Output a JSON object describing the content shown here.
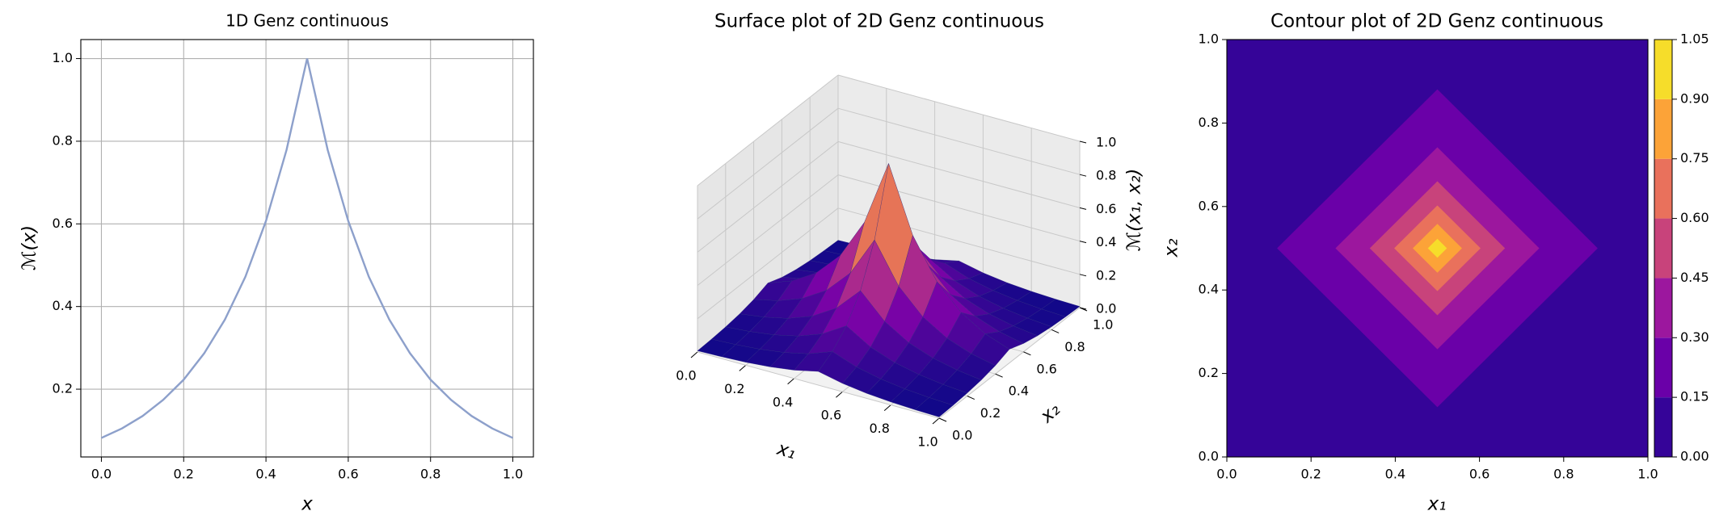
{
  "chart_data": [
    {
      "type": "line",
      "title": "1D Genz continuous",
      "xlabel": "x",
      "ylabel": "ℳ(x)",
      "x": [
        0,
        0.05,
        0.1,
        0.15,
        0.2,
        0.25,
        0.3,
        0.35,
        0.4,
        0.45,
        0.5,
        0.55,
        0.6,
        0.65,
        0.7,
        0.75,
        0.8,
        0.85,
        0.9,
        0.95,
        1
      ],
      "values": [
        0.082,
        0.105,
        0.135,
        0.174,
        0.223,
        0.287,
        0.368,
        0.472,
        0.607,
        0.779,
        1,
        0.779,
        0.607,
        0.472,
        0.368,
        0.287,
        0.223,
        0.174,
        0.135,
        0.105,
        0.082
      ],
      "color": "#8da0cb",
      "xlim": [
        -0.05,
        1.05
      ],
      "ylim": [
        0.036,
        1.046
      ],
      "xticks": [
        {
          "value": 0,
          "label": "0.0"
        },
        0.2,
        0.4,
        0.6,
        0.8,
        {
          "value": 1,
          "label": "1.0"
        }
      ],
      "yticks": [
        0.2,
        0.4,
        0.6,
        0.8,
        {
          "value": 1,
          "label": "1.0"
        }
      ],
      "grid": true
    },
    {
      "type": "surface",
      "title": "Surface plot of 2D Genz continuous",
      "xlabel": "x₁",
      "ylabel": "x₂",
      "zlabel": "ℳ(x₁, x₂)",
      "x": [
        0,
        0.1,
        0.2,
        0.3,
        0.4,
        0.5,
        0.6,
        0.7,
        0.8,
        0.9,
        1
      ],
      "y": [
        0,
        0.1,
        0.2,
        0.3,
        0.4,
        0.5,
        0.6,
        0.7,
        0.8,
        0.9,
        1
      ],
      "z": [
        [
          0.007,
          0.011,
          0.018,
          0.03,
          0.05,
          0.082,
          0.05,
          0.03,
          0.018,
          0.011,
          0.007
        ],
        [
          0.011,
          0.018,
          0.03,
          0.05,
          0.082,
          0.135,
          0.082,
          0.05,
          0.03,
          0.018,
          0.011
        ],
        [
          0.018,
          0.03,
          0.05,
          0.082,
          0.135,
          0.223,
          0.135,
          0.082,
          0.05,
          0.03,
          0.018
        ],
        [
          0.03,
          0.05,
          0.082,
          0.135,
          0.223,
          0.368,
          0.223,
          0.135,
          0.082,
          0.05,
          0.03
        ],
        [
          0.05,
          0.082,
          0.135,
          0.223,
          0.368,
          0.607,
          0.368,
          0.223,
          0.135,
          0.082,
          0.05
        ],
        [
          0.082,
          0.135,
          0.223,
          0.368,
          0.607,
          1,
          0.607,
          0.368,
          0.223,
          0.135,
          0.082
        ],
        [
          0.05,
          0.082,
          0.135,
          0.223,
          0.368,
          0.607,
          0.368,
          0.223,
          0.135,
          0.082,
          0.05
        ],
        [
          0.03,
          0.05,
          0.082,
          0.135,
          0.223,
          0.368,
          0.223,
          0.135,
          0.082,
          0.05,
          0.03
        ],
        [
          0.018,
          0.03,
          0.05,
          0.082,
          0.135,
          0.223,
          0.135,
          0.082,
          0.05,
          0.03,
          0.018
        ],
        [
          0.011,
          0.018,
          0.03,
          0.05,
          0.082,
          0.135,
          0.082,
          0.05,
          0.03,
          0.018,
          0.011
        ],
        [
          0.007,
          0.011,
          0.018,
          0.03,
          0.05,
          0.082,
          0.05,
          0.03,
          0.018,
          0.011,
          0.007
        ]
      ],
      "xlim": [
        0,
        1
      ],
      "ylim": [
        0,
        1
      ],
      "zlim": [
        0,
        1
      ],
      "xticks": [
        {
          "value": 0,
          "label": "0.0"
        },
        0.2,
        0.4,
        0.6,
        0.8,
        {
          "value": 1,
          "label": "1.0"
        }
      ],
      "yticks": [
        {
          "value": 0,
          "label": "0.0"
        },
        0.2,
        0.4,
        0.6,
        0.8,
        {
          "value": 1,
          "label": "1.0"
        }
      ],
      "zticks": [
        {
          "value": 0,
          "label": "0.0"
        },
        0.2,
        0.4,
        0.6,
        0.8,
        {
          "value": 1,
          "label": "1.0"
        }
      ],
      "colormap": "plasma"
    },
    {
      "type": "contour",
      "title": "Contour plot of 2D Genz continuous",
      "xlabel": "x₁",
      "ylabel": "x₂",
      "x": [
        0,
        0.05,
        0.1,
        0.15,
        0.2,
        0.25,
        0.3,
        0.35,
        0.4,
        0.45,
        0.5,
        0.55,
        0.6,
        0.65,
        0.7,
        0.75,
        0.8,
        0.85,
        0.9,
        0.95,
        1
      ],
      "y": [
        0,
        0.05,
        0.1,
        0.15,
        0.2,
        0.25,
        0.3,
        0.35,
        0.4,
        0.45,
        0.5,
        0.55,
        0.6,
        0.65,
        0.7,
        0.75,
        0.8,
        0.85,
        0.9,
        0.95,
        1
      ],
      "z": [
        [
          0.007,
          0.009,
          0.011,
          0.014,
          0.018,
          0.024,
          0.03,
          0.039,
          0.05,
          0.064,
          0.082,
          0.064,
          0.05,
          0.039,
          0.03,
          0.024,
          0.018,
          0.014,
          0.011,
          0.009,
          0.007
        ],
        [
          0.009,
          0.011,
          0.014,
          0.018,
          0.024,
          0.03,
          0.039,
          0.05,
          0.064,
          0.082,
          0.105,
          0.082,
          0.064,
          0.05,
          0.039,
          0.03,
          0.024,
          0.018,
          0.014,
          0.011,
          0.009
        ],
        [
          0.011,
          0.014,
          0.018,
          0.024,
          0.03,
          0.039,
          0.05,
          0.064,
          0.082,
          0.105,
          0.135,
          0.105,
          0.082,
          0.064,
          0.05,
          0.039,
          0.03,
          0.024,
          0.018,
          0.014,
          0.011
        ],
        [
          0.014,
          0.018,
          0.024,
          0.03,
          0.039,
          0.05,
          0.064,
          0.082,
          0.105,
          0.135,
          0.174,
          0.135,
          0.105,
          0.082,
          0.064,
          0.05,
          0.039,
          0.03,
          0.024,
          0.018,
          0.014
        ],
        [
          0.018,
          0.024,
          0.03,
          0.039,
          0.05,
          0.064,
          0.082,
          0.105,
          0.135,
          0.174,
          0.223,
          0.174,
          0.135,
          0.105,
          0.082,
          0.064,
          0.05,
          0.039,
          0.03,
          0.024,
          0.018
        ],
        [
          0.024,
          0.03,
          0.039,
          0.05,
          0.064,
          0.082,
          0.105,
          0.135,
          0.174,
          0.223,
          0.287,
          0.223,
          0.174,
          0.135,
          0.105,
          0.082,
          0.064,
          0.05,
          0.039,
          0.03,
          0.024
        ],
        [
          0.03,
          0.039,
          0.05,
          0.064,
          0.082,
          0.105,
          0.135,
          0.174,
          0.223,
          0.287,
          0.368,
          0.287,
          0.223,
          0.174,
          0.135,
          0.105,
          0.082,
          0.064,
          0.05,
          0.039,
          0.03
        ],
        [
          0.039,
          0.05,
          0.064,
          0.082,
          0.105,
          0.135,
          0.174,
          0.223,
          0.287,
          0.368,
          0.472,
          0.368,
          0.287,
          0.223,
          0.174,
          0.135,
          0.105,
          0.082,
          0.064,
          0.05,
          0.039
        ],
        [
          0.05,
          0.064,
          0.082,
          0.105,
          0.135,
          0.174,
          0.223,
          0.287,
          0.368,
          0.472,
          0.607,
          0.472,
          0.368,
          0.287,
          0.223,
          0.174,
          0.135,
          0.105,
          0.082,
          0.064,
          0.05
        ],
        [
          0.064,
          0.082,
          0.105,
          0.135,
          0.174,
          0.223,
          0.287,
          0.368,
          0.472,
          0.607,
          0.779,
          0.607,
          0.472,
          0.368,
          0.287,
          0.223,
          0.174,
          0.135,
          0.105,
          0.082,
          0.064
        ],
        [
          0.082,
          0.105,
          0.135,
          0.174,
          0.223,
          0.287,
          0.368,
          0.472,
          0.607,
          0.779,
          1,
          0.779,
          0.607,
          0.472,
          0.368,
          0.287,
          0.223,
          0.174,
          0.135,
          0.105,
          0.082
        ],
        [
          0.064,
          0.082,
          0.105,
          0.135,
          0.174,
          0.223,
          0.287,
          0.368,
          0.472,
          0.607,
          0.779,
          0.607,
          0.472,
          0.368,
          0.287,
          0.223,
          0.174,
          0.135,
          0.105,
          0.082,
          0.064
        ],
        [
          0.05,
          0.064,
          0.082,
          0.105,
          0.135,
          0.174,
          0.223,
          0.287,
          0.368,
          0.472,
          0.607,
          0.472,
          0.368,
          0.287,
          0.223,
          0.174,
          0.135,
          0.105,
          0.082,
          0.064,
          0.05
        ],
        [
          0.039,
          0.05,
          0.064,
          0.082,
          0.105,
          0.135,
          0.174,
          0.223,
          0.287,
          0.368,
          0.472,
          0.368,
          0.287,
          0.223,
          0.174,
          0.135,
          0.105,
          0.082,
          0.064,
          0.05,
          0.039
        ],
        [
          0.03,
          0.039,
          0.05,
          0.064,
          0.082,
          0.105,
          0.135,
          0.174,
          0.223,
          0.287,
          0.368,
          0.287,
          0.223,
          0.174,
          0.135,
          0.105,
          0.082,
          0.064,
          0.05,
          0.039,
          0.03
        ],
        [
          0.024,
          0.03,
          0.039,
          0.05,
          0.064,
          0.082,
          0.105,
          0.135,
          0.174,
          0.223,
          0.287,
          0.223,
          0.174,
          0.135,
          0.105,
          0.082,
          0.064,
          0.05,
          0.039,
          0.03,
          0.024
        ],
        [
          0.018,
          0.024,
          0.03,
          0.039,
          0.05,
          0.064,
          0.082,
          0.105,
          0.135,
          0.174,
          0.223,
          0.174,
          0.135,
          0.105,
          0.082,
          0.064,
          0.05,
          0.039,
          0.03,
          0.024,
          0.018
        ],
        [
          0.014,
          0.018,
          0.024,
          0.03,
          0.039,
          0.05,
          0.064,
          0.082,
          0.105,
          0.135,
          0.174,
          0.135,
          0.105,
          0.082,
          0.064,
          0.05,
          0.039,
          0.03,
          0.024,
          0.018,
          0.014
        ],
        [
          0.011,
          0.014,
          0.018,
          0.024,
          0.03,
          0.039,
          0.05,
          0.064,
          0.082,
          0.105,
          0.135,
          0.105,
          0.082,
          0.064,
          0.05,
          0.039,
          0.03,
          0.024,
          0.018,
          0.014,
          0.011
        ],
        [
          0.009,
          0.011,
          0.014,
          0.018,
          0.024,
          0.03,
          0.039,
          0.05,
          0.064,
          0.082,
          0.105,
          0.082,
          0.064,
          0.05,
          0.039,
          0.03,
          0.024,
          0.018,
          0.014,
          0.011,
          0.009
        ],
        [
          0.007,
          0.009,
          0.011,
          0.014,
          0.018,
          0.024,
          0.03,
          0.039,
          0.05,
          0.064,
          0.082,
          0.064,
          0.05,
          0.039,
          0.03,
          0.024,
          0.018,
          0.014,
          0.011,
          0.009,
          0.007
        ]
      ],
      "xlim": [
        0,
        1
      ],
      "ylim": [
        0,
        1
      ],
      "xticks": [
        {
          "value": 0,
          "label": "0.0"
        },
        0.2,
        0.4,
        0.6,
        0.8,
        {
          "value": 1,
          "label": "1.0"
        }
      ],
      "yticks": [
        {
          "value": 0,
          "label": "0.0"
        },
        0.2,
        0.4,
        0.6,
        0.8,
        {
          "value": 1,
          "label": "1.0"
        }
      ],
      "levels": [
        {
          "value": 0,
          "label": "0.00"
        },
        0.15,
        {
          "value": 0.3,
          "label": "0.30"
        },
        0.45,
        {
          "value": 0.6,
          "label": "0.60"
        },
        0.75,
        {
          "value": 0.9,
          "label": "0.90"
        },
        1.05
      ],
      "colors": [
        "#350498",
        "#6a00a8",
        "#9c179e",
        "#c8437b",
        "#e9715c",
        "#fca338",
        "#f6dd2a"
      ]
    }
  ]
}
